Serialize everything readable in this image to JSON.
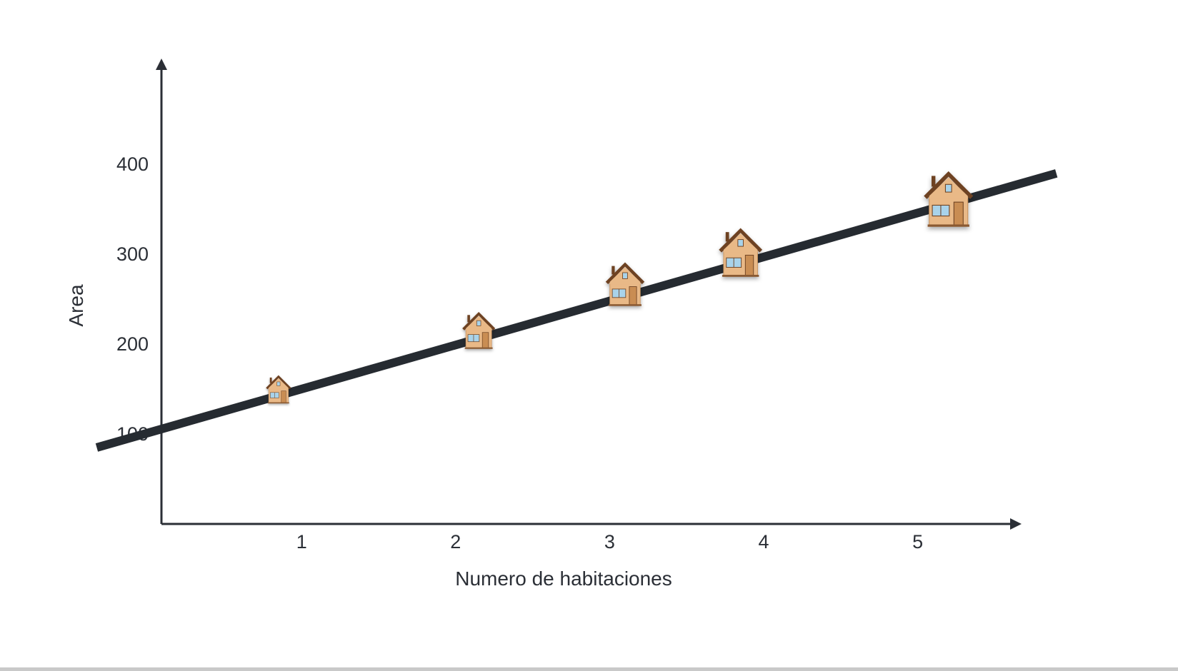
{
  "chart_data": {
    "type": "scatter",
    "x_label": "Numero de habitaciones",
    "y_label": "Area",
    "x_ticks": [
      1,
      2,
      3,
      4,
      5
    ],
    "y_ticks": [
      100,
      200,
      300,
      400
    ],
    "x_range": [
      0.09,
      5.6
    ],
    "y_range": [
      0,
      505
    ],
    "points": [
      {
        "x": 0.85,
        "y": 148
      },
      {
        "x": 2.15,
        "y": 213
      },
      {
        "x": 3.1,
        "y": 264
      },
      {
        "x": 3.85,
        "y": 299
      },
      {
        "x": 5.2,
        "y": 358
      }
    ],
    "trend_line": {
      "start": {
        "x": -0.33,
        "y": 85
      },
      "end": {
        "x": 5.9,
        "y": 390
      }
    },
    "marker_icon": "house-icon",
    "colors": {
      "axis": "#2b2f36",
      "trend_line": "#262b31",
      "house_wall": "#e9b987",
      "house_roof": "#6e4324",
      "house_door": "#c98d52",
      "house_window": "#a9d3ea"
    }
  }
}
